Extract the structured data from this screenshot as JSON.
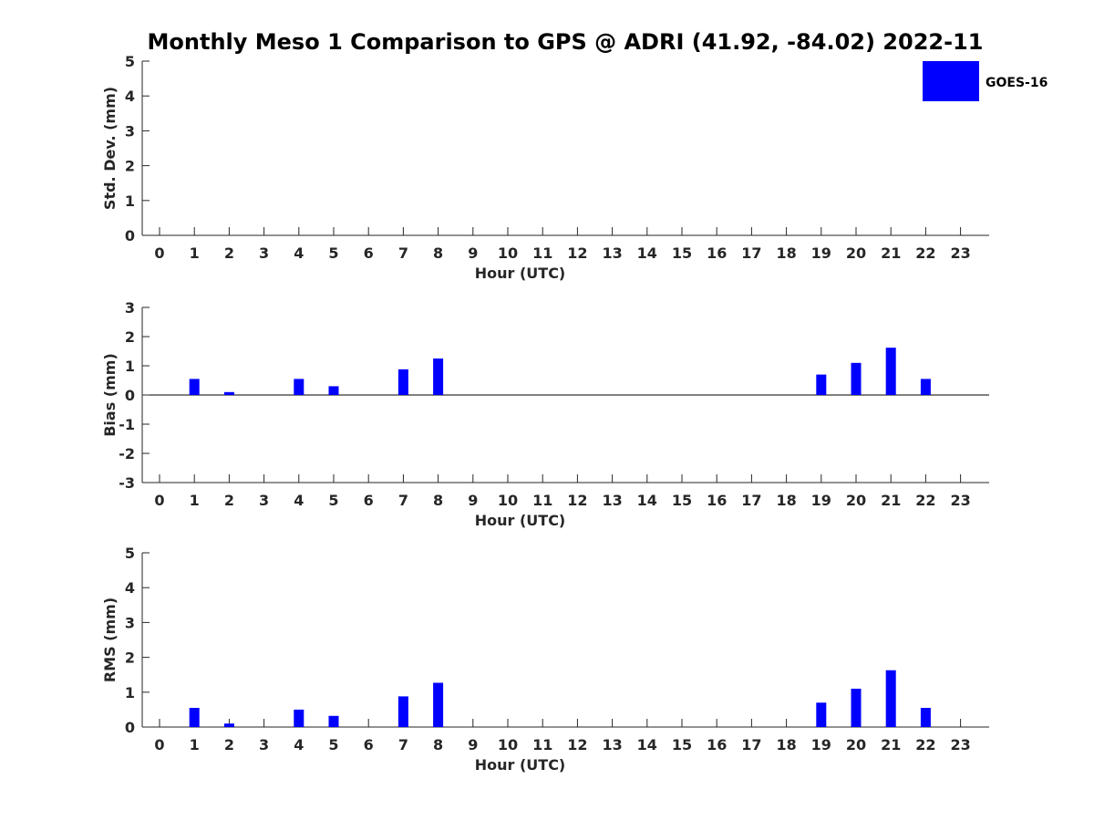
{
  "title": "Monthly Meso 1 Comparison to GPS @ ADRI (41.92, -84.02) 2022-11",
  "legend": {
    "label": "GOES-16",
    "color": "#0000ff"
  },
  "colors": {
    "bar": "#0000ff",
    "axis": "#262626"
  },
  "chart_data": [
    {
      "type": "bar",
      "xlabel": "Hour (UTC)",
      "ylabel": "Std. Dev. (mm)",
      "ylim": [
        0,
        5
      ],
      "yticks": [
        0,
        1,
        2,
        3,
        4,
        5
      ],
      "categories": [
        0,
        1,
        2,
        3,
        4,
        5,
        6,
        7,
        8,
        9,
        10,
        11,
        12,
        13,
        14,
        15,
        16,
        17,
        18,
        19,
        20,
        21,
        22,
        23
      ],
      "series": [
        {
          "name": "GOES-16",
          "values": [
            null,
            null,
            null,
            null,
            null,
            null,
            null,
            null,
            null,
            null,
            null,
            null,
            null,
            null,
            null,
            null,
            null,
            null,
            null,
            null,
            null,
            null,
            null,
            null
          ]
        }
      ]
    },
    {
      "type": "bar",
      "xlabel": "Hour (UTC)",
      "ylabel": "Bias (mm)",
      "ylim": [
        -3,
        3
      ],
      "yticks": [
        -3,
        -2,
        -1,
        0,
        1,
        2,
        3
      ],
      "categories": [
        0,
        1,
        2,
        3,
        4,
        5,
        6,
        7,
        8,
        9,
        10,
        11,
        12,
        13,
        14,
        15,
        16,
        17,
        18,
        19,
        20,
        21,
        22,
        23
      ],
      "series": [
        {
          "name": "GOES-16",
          "values": [
            null,
            0.55,
            0.1,
            null,
            0.55,
            0.3,
            null,
            0.88,
            1.25,
            null,
            null,
            null,
            null,
            null,
            null,
            null,
            null,
            null,
            null,
            0.7,
            1.1,
            1.62,
            0.55,
            null
          ]
        }
      ]
    },
    {
      "type": "bar",
      "xlabel": "Hour (UTC)",
      "ylabel": "RMS (mm)",
      "ylim": [
        0,
        5
      ],
      "yticks": [
        0,
        1,
        2,
        3,
        4,
        5
      ],
      "categories": [
        0,
        1,
        2,
        3,
        4,
        5,
        6,
        7,
        8,
        9,
        10,
        11,
        12,
        13,
        14,
        15,
        16,
        17,
        18,
        19,
        20,
        21,
        22,
        23
      ],
      "series": [
        {
          "name": "GOES-16",
          "values": [
            null,
            0.55,
            0.1,
            null,
            0.5,
            0.32,
            null,
            0.88,
            1.27,
            null,
            null,
            null,
            null,
            null,
            null,
            null,
            null,
            null,
            null,
            0.7,
            1.1,
            1.63,
            0.55,
            null
          ]
        }
      ]
    }
  ]
}
